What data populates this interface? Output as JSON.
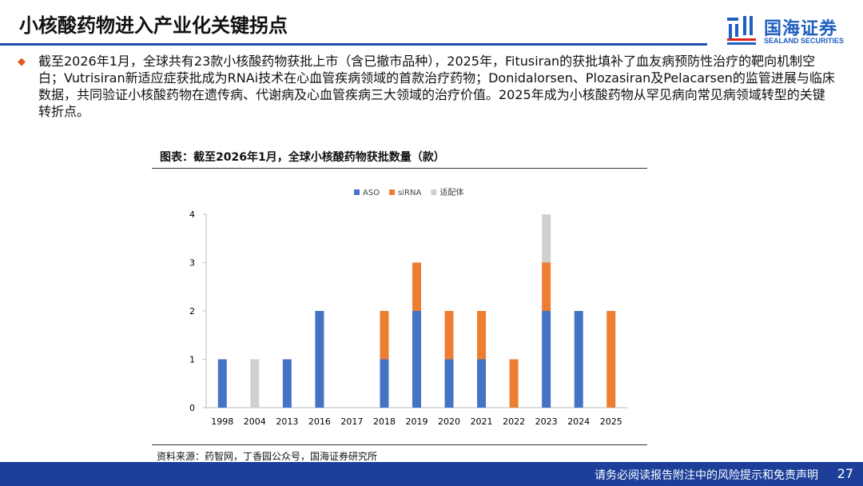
{
  "header": {
    "title": "小核酸药物进入产业化关键拐点"
  },
  "logo": {
    "name_cn": "国海证券",
    "name_en": "SEALAND SECURITIES",
    "color": "#1f5fbf"
  },
  "body": {
    "paragraph": "截至2026年1月，全球共有23款小核酸药物获批上市（含已撤市品种），2025年，Fitusiran的获批填补了血友病预防性治疗的靶向机制空白；Vutrisiran新适应症获批成为RNAi技术在心血管疾病领域的首款治疗药物；Donidalorsen、Plozasiran及Pelacarsen的监管进展与临床数据，共同验证小核酸药物在遗传病、代谢病及心血管疾病三大领域的治疗价值。2025年成为小核酸药物从罕见病向常见病领域转型的关键转折点。"
  },
  "chart_title": "图表：截至2026年1月，全球小核酸药物获批数量（款）",
  "chart_data": {
    "type": "bar",
    "stacked": true,
    "categories": [
      "1998",
      "2004",
      "2013",
      "2016",
      "2017",
      "2018",
      "2019",
      "2020",
      "2021",
      "2022",
      "2023",
      "2024",
      "2025"
    ],
    "series": [
      {
        "name": "ASO",
        "color": "#4472C4",
        "values": [
          1,
          0,
          1,
          2,
          0,
          1,
          2,
          1,
          1,
          0,
          2,
          2,
          0
        ]
      },
      {
        "name": "siRNA",
        "color": "#ED7D31",
        "values": [
          0,
          0,
          0,
          0,
          0,
          1,
          1,
          1,
          1,
          1,
          1,
          0,
          2
        ]
      },
      {
        "name": "适配体",
        "color": "#D0D0D0",
        "values": [
          0,
          1,
          0,
          0,
          0,
          0,
          0,
          0,
          0,
          0,
          1,
          0,
          0
        ]
      }
    ],
    "ylim": [
      0,
      4
    ],
    "yticks": [
      "0",
      "1",
      "2",
      "3",
      "4"
    ],
    "legend": "top",
    "grid": false
  },
  "source": "资料来源：药智网，丁香园公众号，国海证券研究所",
  "footer": {
    "disclaimer": "请务必阅读报告附注中的风险提示和免责声明",
    "page": "27"
  }
}
